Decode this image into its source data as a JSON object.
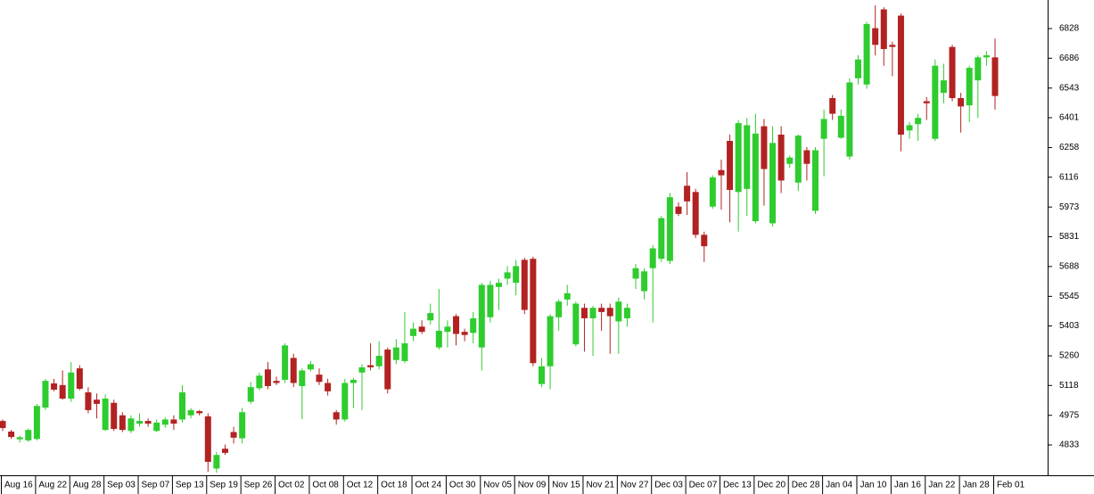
{
  "chart_data": {
    "type": "candlestick",
    "up_color": "#2ecc2e",
    "down_color": "#b22222",
    "categories": [
      "Aug 16",
      null,
      null,
      null,
      "Aug 22",
      null,
      null,
      null,
      "Aug 28",
      null,
      null,
      null,
      "Sep 03",
      null,
      null,
      null,
      "Sep 07",
      null,
      null,
      null,
      "Sep 13",
      null,
      null,
      null,
      "Sep 19",
      null,
      null,
      null,
      "Sep 26",
      null,
      null,
      null,
      "Oct 02",
      null,
      null,
      null,
      "Oct 08",
      null,
      null,
      null,
      "Oct 12",
      null,
      null,
      null,
      "Oct 18",
      null,
      null,
      null,
      "Oct 24",
      null,
      null,
      null,
      "Oct 30",
      null,
      null,
      null,
      "Nov 05",
      null,
      null,
      null,
      "Nov 09",
      null,
      null,
      null,
      "Nov 15",
      null,
      null,
      null,
      "Nov 21",
      null,
      null,
      null,
      "Nov 27",
      null,
      null,
      null,
      "Dec 03",
      null,
      null,
      null,
      "Dec 07",
      null,
      null,
      null,
      "Dec 13",
      null,
      null,
      null,
      "Dec 20",
      null,
      null,
      null,
      "Dec 28",
      null,
      null,
      null,
      "Jan 04",
      null,
      null,
      null,
      "Jan 10",
      null,
      null,
      null,
      "Jan 16",
      null,
      null,
      null,
      "Jan 22",
      null,
      null,
      null,
      "Jan 28",
      null,
      null,
      null,
      "Feb 01"
    ],
    "open": [
      4948,
      4897,
      4860,
      4855,
      4862,
      5012,
      5128,
      5120,
      5055,
      5200,
      5085,
      5050,
      4905,
      5035,
      4975,
      4900,
      4935,
      4948,
      4900,
      4930,
      4955,
      4955,
      4975,
      4995,
      4970,
      4720,
      4815,
      4895,
      4865,
      5040,
      5105,
      5195,
      5140,
      5145,
      5250,
      5115,
      5195,
      5170,
      5130,
      4990,
      4955,
      5130,
      5180,
      5215,
      5210,
      5290,
      5240,
      5235,
      5355,
      5400,
      5430,
      5300,
      5375,
      5450,
      5375,
      5370,
      5300,
      5445,
      5590,
      5630,
      5610,
      5720,
      5725,
      5125,
      5210,
      5445,
      5530,
      5315,
      5490,
      5440,
      5490,
      5490,
      5425,
      5440,
      5630,
      5570,
      5680,
      5725,
      5715,
      5975,
      6075,
      6045,
      5840,
      5975,
      6150,
      6290,
      6045,
      6060,
      5905,
      6360,
      5895,
      6320,
      6180,
      6090,
      6245,
      5955,
      6300,
      6495,
      6305,
      6215,
      6590,
      6560,
      6830,
      6920,
      6750,
      6890,
      6340,
      6370,
      6480,
      6300,
      6520,
      6740,
      6495,
      6460,
      6580,
      6690,
      6690
    ],
    "high": [
      4955,
      4905,
      4878,
      4912,
      5030,
      5150,
      5150,
      5190,
      5230,
      5215,
      5110,
      5080,
      5075,
      5050,
      4990,
      4975,
      4985,
      4960,
      4955,
      4965,
      4975,
      5120,
      5010,
      5000,
      4985,
      4800,
      4835,
      4920,
      5010,
      5135,
      5180,
      5230,
      5160,
      5320,
      5270,
      5200,
      5235,
      5200,
      5150,
      5000,
      5150,
      5155,
      5220,
      5320,
      5330,
      5300,
      5340,
      5470,
      5420,
      5430,
      5510,
      5580,
      5430,
      5460,
      5390,
      5470,
      5610,
      5620,
      5630,
      5690,
      5720,
      5730,
      5735,
      5250,
      5460,
      5530,
      5600,
      5520,
      5510,
      5500,
      5510,
      5510,
      5540,
      5510,
      5700,
      5680,
      5790,
      5930,
      6040,
      5995,
      6140,
      6060,
      5855,
      6125,
      6200,
      6320,
      6390,
      6400,
      6420,
      6395,
      6360,
      6360,
      6220,
      6320,
      6260,
      6260,
      6440,
      6510,
      6440,
      6590,
      6700,
      6860,
      6940,
      6930,
      6765,
      6900,
      6380,
      6420,
      6500,
      6680,
      6660,
      6750,
      6520,
      6650,
      6700,
      6720,
      6780
    ],
    "low": [
      4900,
      4862,
      4845,
      4848,
      4855,
      5000,
      5090,
      5050,
      5040,
      5095,
      4985,
      4960,
      4900,
      4900,
      4895,
      4890,
      4920,
      4920,
      4895,
      4915,
      4905,
      4940,
      4960,
      4975,
      4705,
      4700,
      4785,
      4840,
      4840,
      5030,
      5095,
      5100,
      5120,
      5130,
      5110,
      4957,
      5185,
      5120,
      5070,
      4930,
      4945,
      5010,
      5000,
      5190,
      5195,
      5080,
      5220,
      5225,
      5330,
      5365,
      5410,
      5290,
      5300,
      5310,
      5330,
      5320,
      5190,
      5420,
      5480,
      5600,
      5550,
      5460,
      5210,
      5110,
      5100,
      5380,
      5500,
      5305,
      5280,
      5260,
      5380,
      5270,
      5270,
      5400,
      5580,
      5530,
      5420,
      5710,
      5700,
      5930,
      5935,
      5825,
      5710,
      5965,
      5960,
      5900,
      5855,
      5930,
      5895,
      5980,
      5880,
      6040,
      6160,
      6050,
      6100,
      5940,
      6120,
      6390,
      6300,
      6200,
      6560,
      6540,
      6700,
      6650,
      6600,
      6240,
      6300,
      6290,
      6390,
      6290,
      6470,
      6480,
      6330,
      6380,
      6400,
      6650,
      6440
    ],
    "close": [
      4914,
      4871,
      4870,
      4905,
      5020,
      5140,
      5098,
      5055,
      5180,
      5102,
      5000,
      5030,
      5055,
      4910,
      4905,
      4960,
      4948,
      4935,
      4940,
      4955,
      4935,
      5085,
      5000,
      4985,
      4752,
      4785,
      4795,
      4868,
      4990,
      5110,
      5165,
      5115,
      5130,
      5310,
      5130,
      5190,
      5220,
      5135,
      5090,
      4955,
      5130,
      5145,
      5205,
      5205,
      5260,
      5100,
      5300,
      5320,
      5390,
      5375,
      5465,
      5380,
      5400,
      5365,
      5360,
      5440,
      5600,
      5600,
      5610,
      5660,
      5690,
      5480,
      5225,
      5210,
      5450,
      5520,
      5560,
      5510,
      5440,
      5490,
      5470,
      5450,
      5520,
      5490,
      5680,
      5665,
      5775,
      5920,
      6020,
      5940,
      6000,
      5840,
      5785,
      6115,
      6125,
      6055,
      6375,
      6365,
      6325,
      6155,
      6280,
      6100,
      6210,
      6315,
      6180,
      6245,
      6395,
      6420,
      6410,
      6570,
      6680,
      6850,
      6750,
      6730,
      6740,
      6320,
      6365,
      6400,
      6470,
      6650,
      6580,
      6495,
      6455,
      6640,
      6690,
      6700,
      6505
    ],
    "ylim": [
      4692,
      6965
    ],
    "yticks": [
      4833,
      4975,
      5118,
      5260,
      5403,
      5545,
      5688,
      5831,
      5973,
      6116,
      6258,
      6401,
      6543,
      6686,
      6828
    ]
  }
}
